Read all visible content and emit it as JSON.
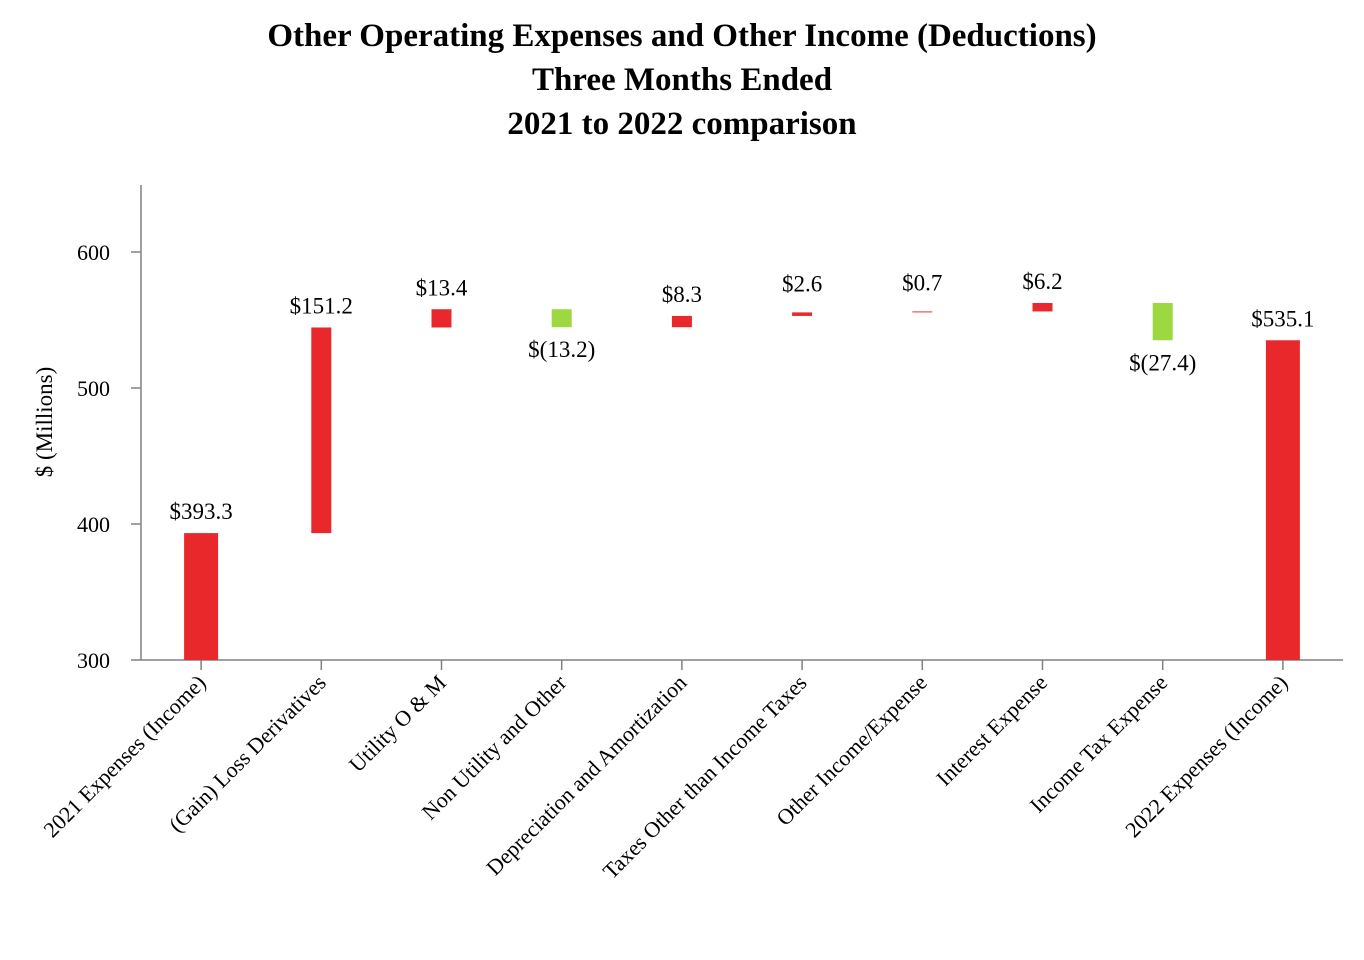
{
  "chart_data": {
    "type": "waterfall",
    "title": [
      "Other Operating Expenses and Other Income (Deductions)",
      "Three Months Ended",
      "2021 to 2022 comparison"
    ],
    "ylabel": "$ (Millions)",
    "ylim": [
      300,
      650
    ],
    "yticks": [
      300,
      400,
      500,
      600
    ],
    "categories": [
      "2021 Expenses (Income)",
      "(Gain) Loss Derivatives",
      "Utility O & M",
      "Non Utility and Other",
      "Depreciation and Amortization",
      "Taxes Other than Income Taxes",
      "Other Income/Expense",
      "Interest Expense",
      "Income Tax Expense",
      "2022 Expenses (Income)"
    ],
    "bars": [
      {
        "category": "2021 Expenses (Income)",
        "kind": "total",
        "start": 300,
        "end": 393.3,
        "label": "$393.3"
      },
      {
        "category": "(Gain) Loss Derivatives",
        "kind": "increase",
        "start": 393.3,
        "end": 544.5,
        "label": "$151.2"
      },
      {
        "category": "Utility O & M",
        "kind": "increase",
        "start": 544.5,
        "end": 557.9,
        "label": "$13.4"
      },
      {
        "category": "Non Utility and Other",
        "kind": "decrease",
        "start": 557.9,
        "end": 544.7,
        "label": "$(13.2)"
      },
      {
        "category": "Depreciation and Amortization",
        "kind": "increase",
        "start": 544.7,
        "end": 553.0,
        "label": "$8.3"
      },
      {
        "category": "Taxes Other than Income Taxes",
        "kind": "increase",
        "start": 553.0,
        "end": 555.6,
        "label": "$2.6"
      },
      {
        "category": "Other Income/Expense",
        "kind": "increase",
        "start": 555.6,
        "end": 556.3,
        "label": "$0.7"
      },
      {
        "category": "Interest Expense",
        "kind": "increase",
        "start": 556.3,
        "end": 562.5,
        "label": "$6.2"
      },
      {
        "category": "Income Tax Expense",
        "kind": "decrease",
        "start": 562.5,
        "end": 535.1,
        "label": "$(27.4)"
      },
      {
        "category": "2022 Expenses (Income)",
        "kind": "total",
        "start": 300,
        "end": 535.1,
        "label": "$535.1"
      }
    ],
    "colors": {
      "increase": "#e8282a",
      "total": "#e8282a",
      "decrease": "#9ed840",
      "axis": "#808080"
    },
    "grid": false
  }
}
